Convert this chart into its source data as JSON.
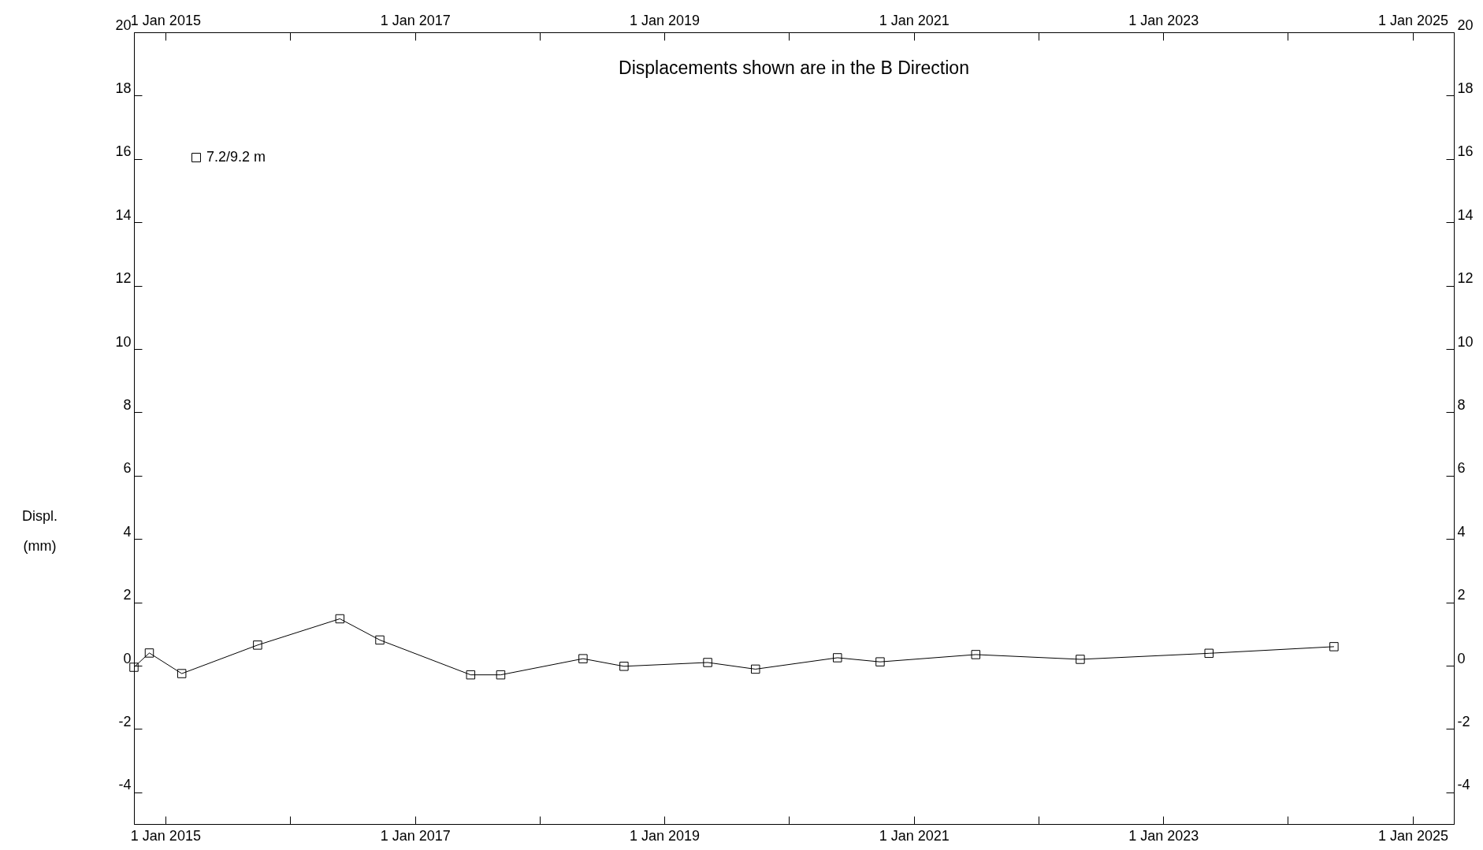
{
  "chart_data": {
    "type": "line",
    "title": "Displacements shown are in the  B Direction",
    "ylabel": "Displ. (mm)",
    "x": [
      "2014-10-01",
      "2014-11-15",
      "2015-02-18",
      "2015-09-28",
      "2016-05-26",
      "2016-09-20",
      "2017-06-13",
      "2017-09-09",
      "2018-05-08",
      "2018-09-05",
      "2019-05-08",
      "2019-09-25",
      "2020-05-22",
      "2020-09-24",
      "2021-07-01",
      "2022-05-03",
      "2023-05-15",
      "2024-05-15"
    ],
    "series": [
      {
        "name": "7.2/9.2 m",
        "color": "#000000",
        "values": [
          -0.05,
          0.4,
          -0.25,
          0.65,
          1.48,
          0.81,
          -0.29,
          -0.29,
          0.22,
          -0.02,
          0.1,
          -0.11,
          0.25,
          0.12,
          0.35,
          0.2,
          0.39,
          0.6
        ]
      }
    ],
    "xlim": [
      "2014-10-01",
      "2025-05-01"
    ],
    "xticks": [
      {
        "value": "2015-01-01",
        "label": "1 Jan 2015"
      },
      {
        "value": "2016-01-01",
        "label": null
      },
      {
        "value": "2017-01-01",
        "label": "1 Jan 2017"
      },
      {
        "value": "2018-01-01",
        "label": null
      },
      {
        "value": "2019-01-01",
        "label": "1 Jan 2019"
      },
      {
        "value": "2020-01-01",
        "label": null
      },
      {
        "value": "2021-01-01",
        "label": "1 Jan 2021"
      },
      {
        "value": "2022-01-01",
        "label": null
      },
      {
        "value": "2023-01-01",
        "label": "1 Jan 2023"
      },
      {
        "value": "2024-01-01",
        "label": null
      },
      {
        "value": "2025-01-01",
        "label": "1 Jan 2025"
      }
    ],
    "x2lim": [
      "2014-10-01",
      "2025-05-01"
    ],
    "x2ticks": [
      {
        "value": "2015-01-01",
        "label": "1 Jan 2015"
      },
      {
        "value": "2016-01-01",
        "label": null
      },
      {
        "value": "2017-01-01",
        "label": "1 Jan 2017"
      },
      {
        "value": "2018-01-01",
        "label": null
      },
      {
        "value": "2019-01-01",
        "label": "1 Jan 2019"
      },
      {
        "value": "2020-01-01",
        "label": null
      },
      {
        "value": "2021-01-01",
        "label": "1 Jan 2021"
      },
      {
        "value": "2022-01-01",
        "label": null
      },
      {
        "value": "2023-01-01",
        "label": "1 Jan 2023"
      },
      {
        "value": "2024-01-01",
        "label": null
      },
      {
        "value": "2025-01-01",
        "label": "1 Jan 2025"
      }
    ],
    "ylim": [
      -5,
      20
    ],
    "yticks": [
      -4,
      -2,
      0,
      2,
      4,
      6,
      8,
      10,
      12,
      14,
      16,
      18,
      20
    ],
    "y2lim": [
      -5,
      20
    ],
    "y2ticks": [
      -4,
      -2,
      0,
      2,
      4,
      6,
      8,
      10,
      12,
      14,
      16,
      18,
      20
    ],
    "grid": false,
    "legend": "top left",
    "marker": "square",
    "line_style": "solid"
  }
}
